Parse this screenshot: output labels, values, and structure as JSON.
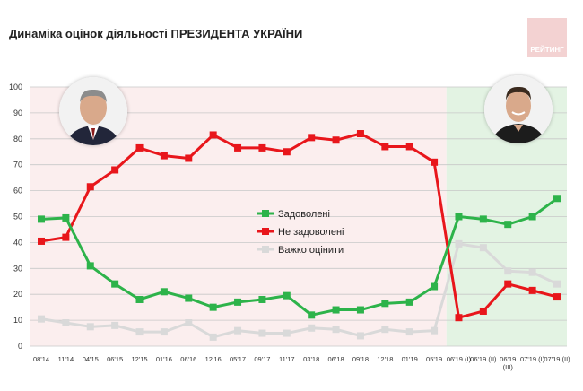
{
  "title": "Динаміка оцінок діяльності ПРЕЗИДЕНТА УКРАЇНИ",
  "brand": "РЕЙТИНГ",
  "colors": {
    "satisfied": "#2db34a",
    "unsatisfied": "#e8161b",
    "unsure": "#d9d9d9",
    "period1_bg": "#fbeeee",
    "period2_bg": "#e3f3e3",
    "grid": "#c8c8c8"
  },
  "chart_data": {
    "type": "line",
    "title": "Динаміка оцінок діяльності ПРЕЗИДЕНТА УКРАЇНИ",
    "ylim": [
      0,
      100
    ],
    "yticks": [
      0,
      10,
      20,
      30,
      40,
      50,
      60,
      70,
      80,
      90,
      100
    ],
    "grid": true,
    "legend_position": "center",
    "categories": [
      "08'14",
      "11'14",
      "04'15",
      "06'15",
      "12'15",
      "01'16",
      "06'16",
      "12'16",
      "05'17",
      "09'17",
      "11'17",
      "03'18",
      "06'18",
      "09'18",
      "12'18",
      "01'19",
      "05'19",
      "06'19 (I)",
      "06'19 (II)",
      "06'19 (III)",
      "07'19 (I)",
      "07'19 (II)"
    ],
    "category_lines": [
      [
        "08'14"
      ],
      [
        "11'14"
      ],
      [
        "04'15"
      ],
      [
        "06'15"
      ],
      [
        "12'15"
      ],
      [
        "01'16"
      ],
      [
        "06'16"
      ],
      [
        "12'16"
      ],
      [
        "05'17"
      ],
      [
        "09'17"
      ],
      [
        "11'17"
      ],
      [
        "03'18"
      ],
      [
        "06'18"
      ],
      [
        "09'18"
      ],
      [
        "12'18"
      ],
      [
        "01'19"
      ],
      [
        "05'19"
      ],
      [
        "06'19 (I)"
      ],
      [
        "06'19 (II)"
      ],
      [
        "06'19",
        "(III)"
      ],
      [
        "07'19 (I)"
      ],
      [
        "07'19 (II)"
      ]
    ],
    "series": [
      {
        "name": "Задоволені",
        "color": "#2db34a",
        "values": [
          49,
          49.5,
          31,
          24,
          18,
          21,
          18.5,
          15,
          17,
          18,
          19.5,
          12,
          14,
          14,
          16.5,
          17,
          23,
          50,
          49,
          47,
          50,
          57
        ]
      },
      {
        "name": "Не задоволені",
        "color": "#e8161b",
        "values": [
          40.5,
          42,
          61.5,
          68,
          76.5,
          73.5,
          72.5,
          81.5,
          76.5,
          76.5,
          75,
          80.5,
          79.5,
          82,
          77,
          77,
          71,
          11,
          13.5,
          24,
          21.5,
          19
        ]
      },
      {
        "name": "Важко оцінити",
        "color": "#d9d9d9",
        "values": [
          10.5,
          9,
          7.5,
          8,
          5.5,
          5.5,
          9,
          3.5,
          6,
          5,
          5,
          7,
          6.5,
          4,
          6.5,
          5.5,
          6,
          39.5,
          38,
          29,
          28.5,
          24
        ]
      }
    ]
  }
}
